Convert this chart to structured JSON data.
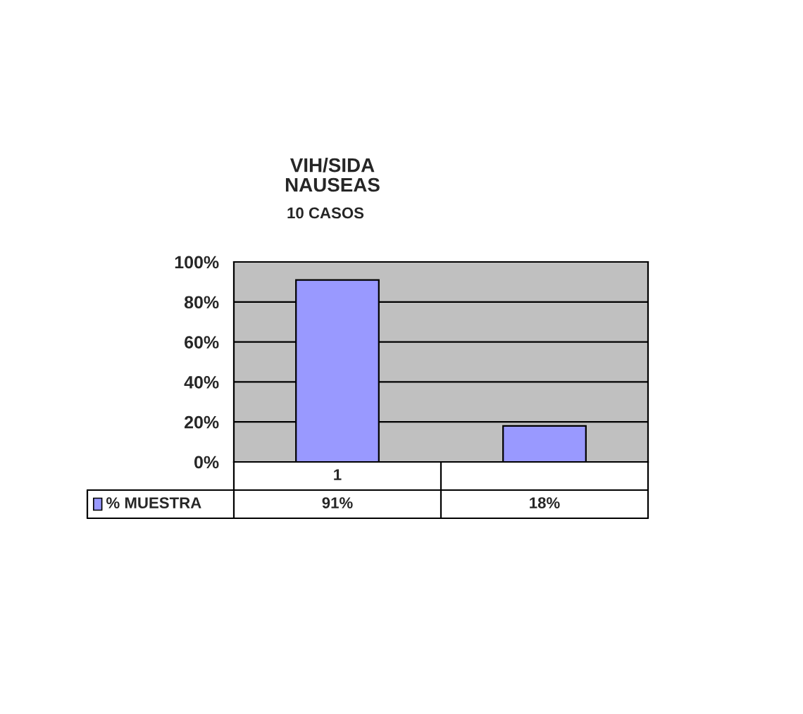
{
  "chart_data": {
    "type": "bar",
    "title": "VIH/SIDA\nNAUSEAS",
    "subtitle": "10 CASOS",
    "categories": [
      "1",
      null
    ],
    "series": [
      {
        "name": "% MUESTRA",
        "color": "#9999ff",
        "values": [
          91,
          18
        ],
        "value_labels": [
          "91%",
          "18%"
        ]
      }
    ],
    "ylim": [
      0,
      100
    ],
    "yticks": [
      {
        "value": 0,
        "label": "0%"
      },
      {
        "value": 20,
        "label": "20%"
      },
      {
        "value": 40,
        "label": "40%"
      },
      {
        "value": 60,
        "label": "60%"
      },
      {
        "value": 80,
        "label": "80%"
      },
      {
        "value": 100,
        "label": "100%"
      }
    ],
    "grid": "y",
    "tick_labels": "y",
    "legend": "bottom"
  }
}
